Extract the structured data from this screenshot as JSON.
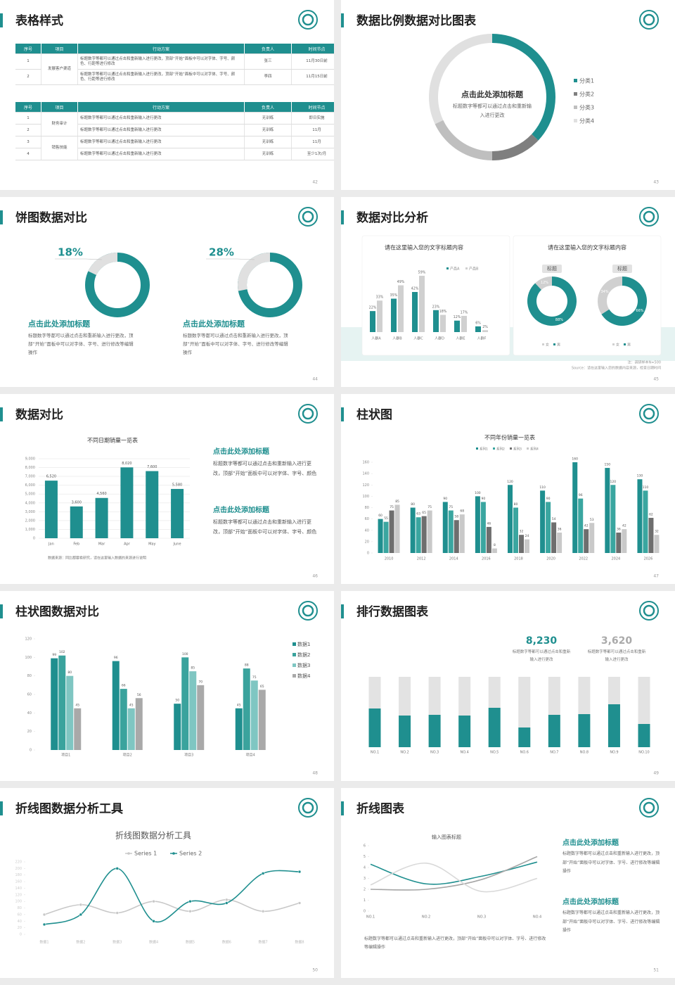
{
  "slides": [
    {
      "title": "表格样式",
      "page": "42",
      "tables": [
        {
          "header": [
            "序号",
            "项目",
            "行动方案",
            "负责人",
            "时间节点"
          ],
          "rows": [
            [
              "1",
              "发展客户渠道",
              "标题数字等都可以通过点击和重新输入进行更改，顶部“开始”面板中可以对字体、字号、颜色、行距等进行修改",
              "张三",
              "11月30日前"
            ],
            [
              "2",
              null,
              "标题数字等都可以通过点击和重新输入进行更改，顶部“开始”面板中可以对字体、字号、颜色、行距等进行修改",
              "李四",
              "11月15日前"
            ]
          ]
        },
        {
          "header": [
            "序号",
            "项目",
            "行动方案",
            "负责人",
            "时间节点"
          ],
          "rows": [
            [
              "1",
              "财务审计",
              "标题数字等都可以通过点击和重新输入进行更改",
              "无训练",
              "即日实施"
            ],
            [
              "2",
              null,
              "标题数字等都可以通过点击和重新输入进行更改",
              "无训练",
              "11月"
            ],
            [
              "3",
              "销售技能",
              "标题数字等都可以通过点击和重新输入进行更改",
              "无训练",
              "11月"
            ],
            [
              "4",
              null,
              "标题数字等都可以通过点击和重新输入进行更改",
              "无训练",
              "至少1次/月"
            ]
          ]
        }
      ]
    },
    {
      "title": "数据比例数据对比图表",
      "page": "43",
      "chart_data": {
        "type": "donut",
        "title": "点击此处添加标题",
        "subtitle": "标题数字等都可以通过点击和重新输入进行更改",
        "categories": [
          "分类1",
          "分类2",
          "分类3",
          "分类4"
        ],
        "values": [
          37,
          13,
          18,
          32
        ],
        "colors": [
          "#1f8f8f",
          "#7f7f7f",
          "#bfbfbf",
          "#e0e0e0"
        ]
      }
    },
    {
      "title": "饼图数据对比",
      "page": "44",
      "chart_data": [
        {
          "type": "donut",
          "values": [
            18
          ],
          "value_labels": [
            "18%"
          ],
          "color": "#e0e0e0",
          "track_color": "#1f8f8f",
          "heading": "点击此处添加标题",
          "text": "标题数字等都可以通过点击和重新输入进行更改，顶部“开始”面板中可以对字体、字号、进行修改等编辑操作"
        },
        {
          "type": "donut",
          "values": [
            28
          ],
          "value_labels": [
            "28%"
          ],
          "color": "#e0e0e0",
          "track_color": "#1f8f8f",
          "heading": "点击此处添加标题",
          "text": "标题数字等都可以通过点击和重新输入进行更改，顶部“开始”面板中可以对字体、字号、进行修改等编辑操作"
        }
      ]
    },
    {
      "title": "数据对比分析",
      "page": "45",
      "chart_data": [
        {
          "type": "bar",
          "title": "请在这里输入您的文字标题内容",
          "categories": [
            "人群A",
            "人群B",
            "人群C",
            "人群D",
            "人群E",
            "人群F"
          ],
          "series": [
            {
              "name": "产品A",
              "color": "#1f8f8f",
              "values": [
                22,
                35,
                42,
                23,
                12,
                6
              ],
              "value_labels": [
                "22%",
                "35%",
                "42%",
                "23%",
                "12%",
                "6%"
              ]
            },
            {
              "name": "产品B",
              "color": "#d0d0d0",
              "values": [
                33,
                49,
                59,
                18,
                17,
                2
              ],
              "value_labels": [
                "33%",
                "49%",
                "59%",
                "18%",
                "17%",
                "2%"
              ]
            }
          ],
          "ylim": [
            0,
            70
          ]
        },
        {
          "type": "donut",
          "title": "请在这里输入您的文字标题内容",
          "categories": [
            "女",
            "男"
          ],
          "colors": [
            "#d0d0d0",
            "#1f8f8f"
          ],
          "charts": [
            {
              "label": "标题",
              "values": [
                12,
                88
              ],
              "value_labels": [
                "12%",
                "88%"
              ]
            },
            {
              "label": "标题",
              "values": [
                34,
                66
              ],
              "value_labels": [
                "34%",
                "66%"
              ]
            }
          ]
        }
      ],
      "note": "注：调研样本N=500",
      "source": "Source：请在这里输入您的数据内容来源，检查日期时间"
    },
    {
      "title": "数据对比",
      "page": "46",
      "chart_data": {
        "type": "bar",
        "title": "不同日期销量一览表",
        "categories": [
          "Jan",
          "Feb",
          "Mar",
          "Apr",
          "May",
          "June"
        ],
        "values": [
          6520,
          3600,
          4560,
          8020,
          7600,
          5580
        ],
        "value_labels": [
          "6,520",
          "3,600",
          "4,560",
          "8,020",
          "7,600",
          "5,580"
        ],
        "color": "#1f8f8f",
        "ylim": [
          0,
          9000
        ],
        "yticks": [
          0,
          {
            "value": 1000,
            "label": "1,000"
          },
          {
            "value": 2000,
            "label": "2,000"
          },
          {
            "value": 3000,
            "label": "3,000"
          },
          {
            "value": 4000,
            "label": "4,000"
          },
          {
            "value": 5000,
            "label": "5,000"
          },
          {
            "value": 6000,
            "label": "6,000"
          },
          {
            "value": 7000,
            "label": "7,000"
          },
          {
            "value": 8000,
            "label": "8,000"
          },
          {
            "value": 9000,
            "label": "9,000"
          }
        ],
        "grid": true
      },
      "source": "数据来源：同比都要看研究，请在这里输入数据的来源进行说明",
      "blocks": [
        {
          "heading": "点击此处添加标题",
          "text": "标题数字等都可以通过点击和重新输入进行更改，顶部“开始”面板中可以对字体、字号、颜色"
        },
        {
          "heading": "点击此处添加标题",
          "text": "标题数字等都可以通过点击和重新输入进行更改，顶部“开始”面板中可以对字体、字号、颜色"
        }
      ]
    },
    {
      "title": "柱状图",
      "page": "47",
      "chart_data": {
        "type": "bar",
        "title": "不同年份销量一览表",
        "categories": [
          "2010",
          "2012",
          "2014",
          "2016",
          "2018",
          "2020",
          "2022",
          "2024",
          "2026"
        ],
        "series": [
          {
            "name": "系列1",
            "color": "#1f8f8f",
            "values": [
              60,
              80,
              90,
              100,
              120,
              110,
              160,
              150,
              130
            ]
          },
          {
            "name": "系列2",
            "color": "#3aa6a0",
            "values": [
              55,
              63,
              75,
              90,
              80,
              90,
              96,
              120,
              110
            ]
          },
          {
            "name": "系列3",
            "color": "#6e6e6e",
            "values": [
              75,
              65,
              58,
              46,
              32,
              54,
              42,
              36,
              62
            ]
          },
          {
            "name": "系列4",
            "color": "#c9c9c9",
            "values": [
              85,
              75,
              68,
              8,
              24,
              36,
              53,
              42,
              32
            ]
          }
        ],
        "ylim": [
          0,
          160
        ],
        "yticks": [
          0,
          20,
          40,
          60,
          80,
          100,
          120,
          140,
          160
        ]
      }
    },
    {
      "title": "柱状图数据对比",
      "page": "48",
      "chart_data": {
        "type": "bar",
        "categories": [
          "项目1",
          "项目2",
          "项目3",
          "项目4"
        ],
        "series": [
          {
            "name": "数据1",
            "color": "#1f8f8f",
            "values": [
              99,
              96,
              50,
              45
            ]
          },
          {
            "name": "数据2",
            "color": "#3aa39d",
            "values": [
              102,
              66,
              100,
              88
            ]
          },
          {
            "name": "数据3",
            "color": "#7fc6c2",
            "values": [
              80,
              45,
              85,
              75
            ]
          },
          {
            "name": "数据4",
            "color": "#a9a9a9",
            "values": [
              45,
              56,
              70,
              65
            ]
          }
        ],
        "ylim": [
          0,
          120
        ],
        "yticks": [
          0,
          20,
          40,
          60,
          80,
          100,
          120
        ]
      }
    },
    {
      "title": "排行数据图表",
      "page": "49",
      "stats": [
        {
          "value": "8,230",
          "text": "标题数字等都可以通过点击和重新输入进行更改"
        },
        {
          "value": "3,620",
          "text": "标题数字等都可以通过点击和重新输入进行更改"
        }
      ],
      "chart_data": {
        "type": "stacked-bar",
        "categories": [
          "NO.1",
          "NO.2",
          "NO.3",
          "NO.4",
          "NO.5",
          "NO.6",
          "NO.7",
          "NO.8",
          "NO.9",
          "NO.10"
        ],
        "series": [
          {
            "color": "#1f8f8f",
            "values": [
              55,
              45,
              46,
              45,
              56,
              28,
              46,
              47,
              61,
              33
            ]
          },
          {
            "color": "#e3e3e3",
            "values": [
              45,
              55,
              54,
              55,
              44,
              72,
              54,
              53,
              39,
              67
            ]
          }
        ],
        "ylim": [
          0,
          100
        ]
      }
    },
    {
      "title": "折线图数据分析工具",
      "page": "50",
      "chart_data": {
        "type": "line",
        "title": "折线图数据分析工具",
        "categories": [
          "数据1",
          "数据2",
          "数据3",
          "数据4",
          "数据5",
          "数据6",
          "数据7",
          "数据8"
        ],
        "series": [
          {
            "name": "Series 1",
            "color": "#c8c8c8",
            "values": [
              60,
              90,
              65,
              100,
              70,
              105,
              70,
              95
            ]
          },
          {
            "name": "Series 2",
            "color": "#1f8f8f",
            "values": [
              30,
              60,
              200,
              40,
              100,
              95,
              185,
              190
            ]
          }
        ],
        "ylim": [
          0,
          220
        ],
        "yticks": [
          0,
          20,
          40,
          60,
          80,
          100,
          120,
          140,
          160,
          180,
          200,
          220
        ]
      }
    },
    {
      "title": "折线图表",
      "page": "51",
      "chart_data": {
        "type": "line",
        "title": "输入图表标题",
        "categories": [
          "NO.1",
          "NO.2",
          "NO.3",
          "NO.4"
        ],
        "series": [
          {
            "color": "#1f8f8f",
            "values": [
              4.3,
              2.5,
              3.2,
              4.5
            ]
          },
          {
            "color": "#a6a6a6",
            "values": [
              2,
              2,
              2.9,
              5
            ]
          },
          {
            "color": "#d9d9d9",
            "values": [
              2.4,
              4.4,
              1.8,
              3
            ]
          }
        ],
        "ylim": [
          0,
          6
        ],
        "yticks": [
          0,
          1,
          2,
          3,
          4,
          5,
          6
        ]
      },
      "text": "标题数字等都可以通过点击和重新输入进行更改，顶部“开始”面板中可以对字体、字号、进行修改等编辑操作",
      "blocks": [
        {
          "heading": "点击此处添加标题",
          "text": "标题数字等都可以通过点击和重新输入进行更改，顶部“开始”面板中可以对字体、字号、进行修改等编辑操作"
        },
        {
          "heading": "点击此处添加标题",
          "text": "标题数字等都可以通过点击和重新输入进行更改，顶部“开始”面板中可以对字体、字号、进行修改等编辑操作"
        }
      ]
    }
  ]
}
